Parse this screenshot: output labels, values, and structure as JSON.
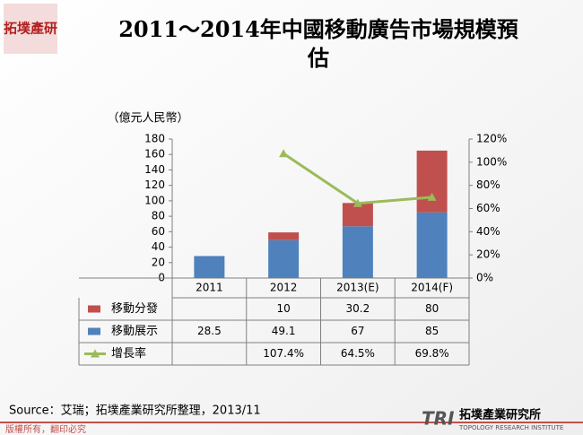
{
  "logo": "拓墣產研",
  "chart_data": {
    "type": "bar-line",
    "title": "2011～2014年中國移動廣告市場規模預估",
    "y_label": "（億元人民幣）",
    "categories": [
      "2011",
      "2012",
      "2013(E)",
      "2014(F)"
    ],
    "series": [
      {
        "name": "移動分發",
        "color": "#c0504d",
        "values": [
          null,
          10,
          30.2,
          80
        ]
      },
      {
        "name": "移動展示",
        "color": "#4f81bd",
        "values": [
          28.5,
          49.1,
          67,
          85
        ]
      },
      {
        "name": "增長率",
        "color": "#9bbb59",
        "axis": "y2",
        "values": [
          null,
          107.4,
          64.5,
          69.8
        ],
        "value_labels": [
          null,
          "107.4%",
          "64.5%",
          "69.8%"
        ]
      }
    ],
    "ylim": [
      0,
      180
    ],
    "yticks": [
      0,
      20,
      40,
      60,
      80,
      100,
      120,
      140,
      160,
      180
    ],
    "y2lim": [
      0,
      120
    ],
    "y2ticks": [
      {
        "value": 0,
        "label": "0%"
      },
      {
        "value": 20,
        "label": "20%"
      },
      {
        "value": 40,
        "label": "40%"
      },
      {
        "value": 60,
        "label": "60%"
      },
      {
        "value": 80,
        "label": "80%"
      },
      {
        "value": 100,
        "label": "100%"
      },
      {
        "value": 120,
        "label": "120%"
      }
    ],
    "source": "Source：艾瑞；拓墣產業研究所整理，2013/11"
  },
  "footer": {
    "copyright": "版權所有，翻印必究",
    "brand": "拓墣產業研究所",
    "brand_en": "TOPOLOGY RESEARCH INSTITUTE",
    "brand_mark": "TRI"
  }
}
